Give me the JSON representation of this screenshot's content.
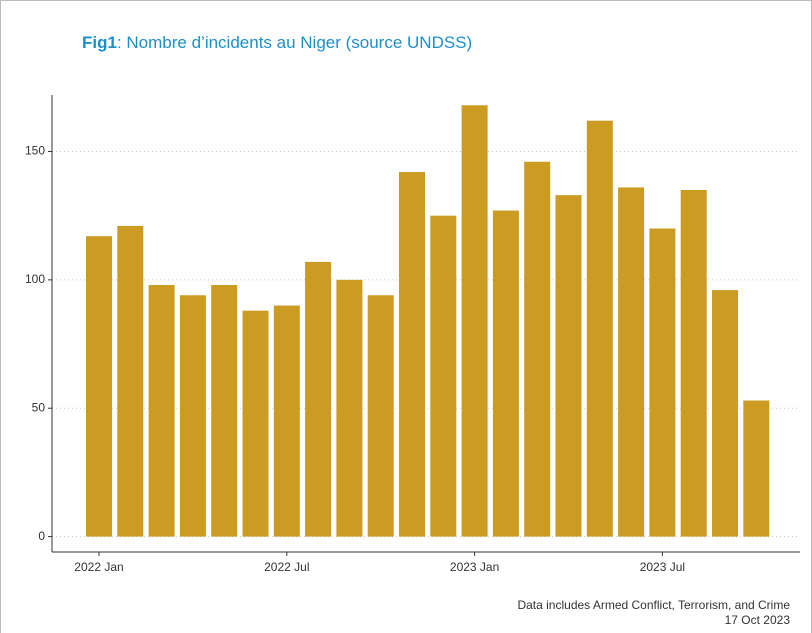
{
  "chart_data": {
    "type": "bar",
    "title_prefix": "Fig1",
    "title": ": Nombre d’incidents au Niger (source UNDSS)",
    "caption": [
      "Data includes Armed  Conflict, Terrorism, and Crime",
      "17 Oct 2023"
    ],
    "categories": [
      "2022 Jan",
      null,
      null,
      null,
      null,
      null,
      "2022 Jul",
      null,
      null,
      null,
      null,
      null,
      "2023 Jan",
      null,
      null,
      null,
      null,
      null,
      "2023 Jul",
      null,
      null,
      null
    ],
    "values": [
      117,
      121,
      98,
      94,
      98,
      88,
      90,
      107,
      100,
      94,
      142,
      125,
      168,
      127,
      146,
      133,
      162,
      136,
      120,
      135,
      96,
      53
    ],
    "color": "#cc9b22",
    "ylim": [
      -6,
      172
    ],
    "yticks": [
      0,
      50,
      100,
      150
    ],
    "grid": true
  }
}
